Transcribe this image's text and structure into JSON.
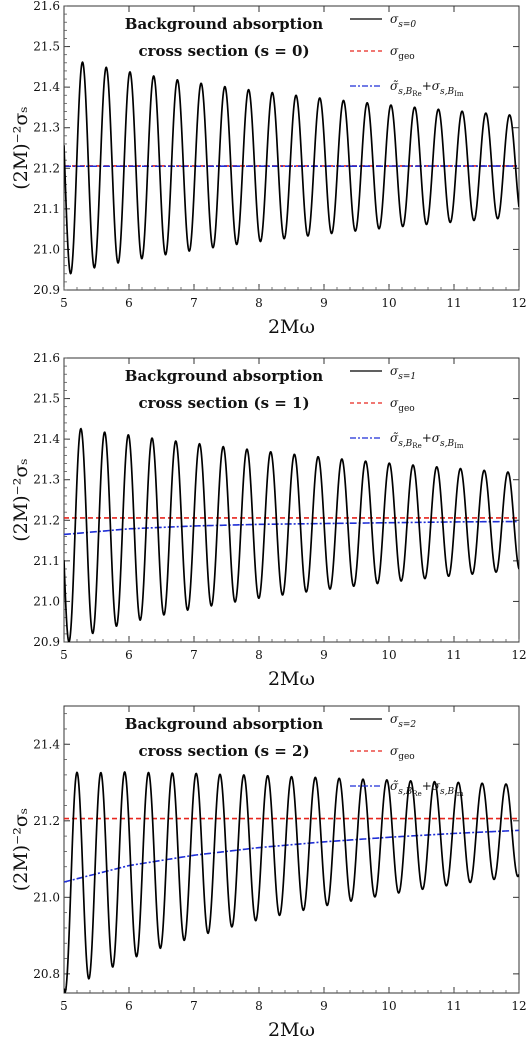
{
  "chart_data": [
    {
      "type": "line",
      "annotation": [
        "Background absorption",
        "cross section (s = 0)"
      ],
      "xlabel": "2Mω",
      "ylabel": "(2M)⁻²σₛ",
      "xlim": [
        5,
        12
      ],
      "ylim": [
        20.9,
        21.6
      ],
      "xticks": [
        5,
        6,
        7,
        8,
        9,
        10,
        11,
        12
      ],
      "yticks": [
        20.9,
        21.0,
        21.1,
        21.2,
        21.3,
        21.4,
        21.5,
        21.6
      ],
      "xtick_labels": [
        "5",
        "6",
        "7",
        "8",
        "9",
        "10",
        "11",
        "12"
      ],
      "ytick_labels": [
        "20.9",
        "21.0",
        "21.1",
        "21.2",
        "21.3",
        "21.4",
        "21.5",
        "21.6"
      ],
      "legend_position": "top-right",
      "colors": {
        "exact": "#000000",
        "geo": "#e8261e",
        "approx": "#1f2fd6"
      },
      "series": [
        {
          "name": "σs=0",
          "style": "solid",
          "baseline": 21.2048,
          "amplitude_start": 0.27,
          "amplitude_end": 0.125,
          "first_peak_x": 5.285,
          "last_peak_x": 11.855,
          "peak_count": 19
        },
        {
          "name": "σgeo",
          "style": "dashed",
          "x": [
            5,
            12
          ],
          "y": [
            21.2058,
            21.2058
          ]
        },
        {
          "name": "σ̃s,BRe+σs,BIm",
          "style": "dashdot",
          "x": [
            5,
            6,
            7,
            8,
            9,
            10,
            11,
            12
          ],
          "y": [
            21.205,
            21.205,
            21.205,
            21.2052,
            21.2052,
            21.2053,
            21.2054,
            21.2055
          ]
        }
      ]
    },
    {
      "type": "line",
      "annotation": [
        "Background absorption",
        "cross section (s = 1)"
      ],
      "xlabel": "2Mω",
      "ylabel": "(2M)⁻²σₛ",
      "xlim": [
        5,
        12
      ],
      "ylim": [
        20.9,
        21.6
      ],
      "xticks": [
        5,
        6,
        7,
        8,
        9,
        10,
        11,
        12
      ],
      "yticks": [
        20.9,
        21.0,
        21.1,
        21.2,
        21.3,
        21.4,
        21.5,
        21.6
      ],
      "xtick_labels": [
        "5",
        "6",
        "7",
        "8",
        "9",
        "10",
        "11",
        "12"
      ],
      "ytick_labels": [
        "20.9",
        "21.0",
        "21.1",
        "21.2",
        "21.3",
        "21.4",
        "21.5",
        "21.6"
      ],
      "legend_position": "top-right",
      "colors": {
        "exact": "#000000",
        "geo": "#e8261e",
        "approx": "#1f2fd6"
      },
      "series": [
        {
          "name": "σs=1",
          "style": "solid",
          "baseline_start": 21.165,
          "baseline_end": 21.197,
          "amplitude_start": 0.27,
          "amplitude_end": 0.12,
          "first_peak_x": 5.26,
          "last_peak_x": 11.83,
          "peak_count": 19
        },
        {
          "name": "σgeo",
          "style": "dashed",
          "x": [
            5,
            12
          ],
          "y": [
            21.2058,
            21.2058
          ]
        },
        {
          "name": "σ̃s,BRe+σs,BIm",
          "style": "dashdot",
          "x": [
            5,
            6,
            7,
            8,
            9,
            10,
            11,
            12
          ],
          "y": [
            21.165,
            21.179,
            21.186,
            21.19,
            21.192,
            21.194,
            21.196,
            21.197
          ]
        }
      ]
    },
    {
      "type": "line",
      "annotation": [
        "Background absorption",
        "cross section (s = 2)"
      ],
      "xlabel": "2Mω",
      "ylabel": "(2M)⁻²σₛ",
      "xlim": [
        5,
        12
      ],
      "ylim": [
        20.75,
        21.5
      ],
      "xticks": [
        5,
        6,
        7,
        8,
        9,
        10,
        11,
        12
      ],
      "yticks": [
        20.8,
        21.0,
        21.2,
        21.4
      ],
      "xtick_labels": [
        "5",
        "6",
        "7",
        "8",
        "9",
        "10",
        "11",
        "12"
      ],
      "ytick_labels": [
        "20.8",
        "21.0",
        "21.2",
        "21.4"
      ],
      "legend_position": "top-right",
      "colors": {
        "exact": "#000000",
        "geo": "#e8261e",
        "approx": "#1f2fd6"
      },
      "series": [
        {
          "name": "σs=2",
          "style": "solid",
          "baseline_start": 21.04,
          "baseline_end": 21.175,
          "amplitude_start": 0.29,
          "amplitude_end": 0.12,
          "first_peak_x": 5.2,
          "last_peak_x": 11.8,
          "peak_count": 19
        },
        {
          "name": "σgeo",
          "style": "dashed",
          "x": [
            5,
            12
          ],
          "y": [
            21.2058,
            21.2058
          ]
        },
        {
          "name": "σ̃s,BRe+σs,BIm",
          "style": "dashdot",
          "x": [
            5,
            6,
            7,
            8,
            9,
            10,
            11,
            12
          ],
          "y": [
            21.04,
            21.083,
            21.11,
            21.13,
            21.145,
            21.157,
            21.167,
            21.175
          ]
        }
      ]
    }
  ]
}
